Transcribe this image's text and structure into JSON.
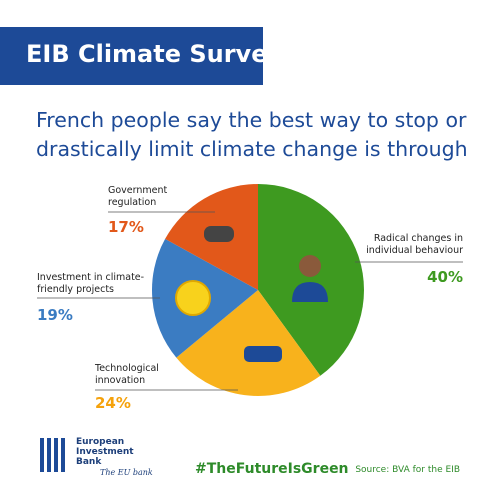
{
  "header": {
    "title": "EIB Climate Survey",
    "subtitle": "French people say the best way to stop or drastically limit climate change is through"
  },
  "chart_data": {
    "type": "pie",
    "categories": [
      "Radical changes in individual behaviour",
      "Technological innovation",
      "Investment in climate-friendly projects",
      "Government regulation"
    ],
    "values": [
      40,
      24,
      19,
      17
    ],
    "value_labels": [
      "40%",
      "24%",
      "19%",
      "17%"
    ],
    "colors": [
      "#3e9a20",
      "#f8b21c",
      "#3b7cc2",
      "#e2581a"
    ]
  },
  "footer": {
    "organization": "European Investment Bank",
    "tagline": "The EU bank",
    "hashtag": "#TheFutureIsGreen",
    "source": "Source: BVA for the EIB"
  }
}
